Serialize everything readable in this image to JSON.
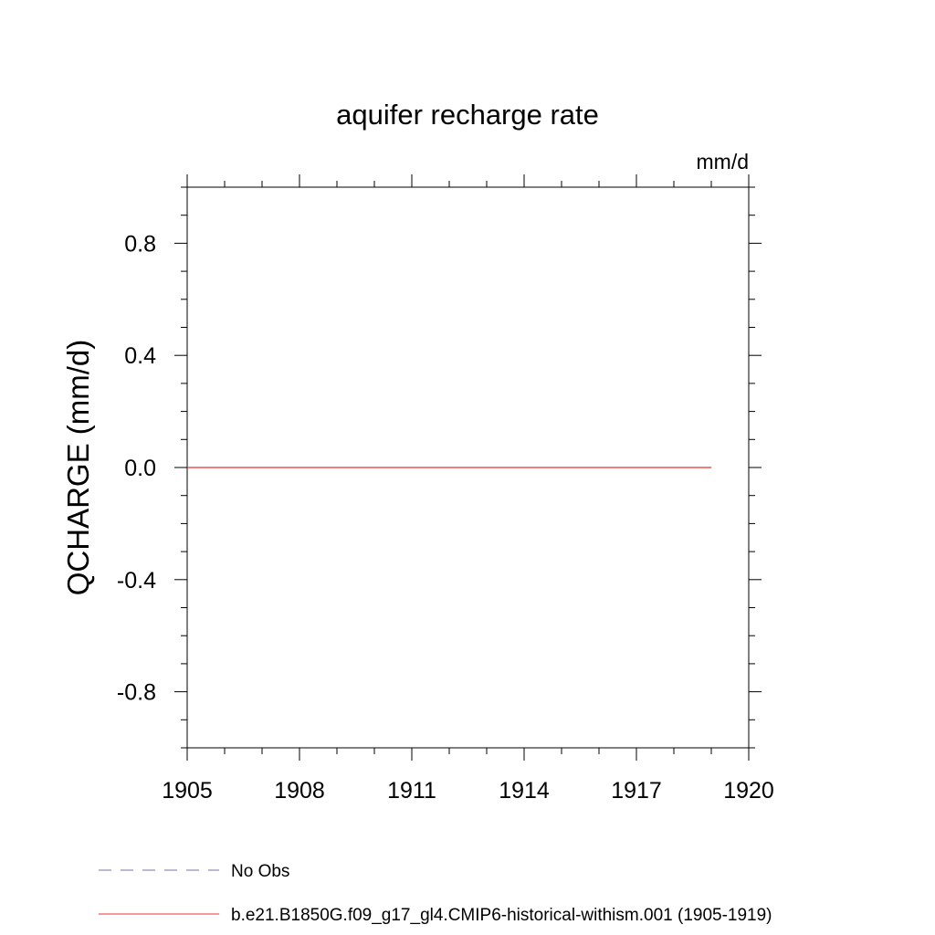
{
  "chart_data": {
    "type": "line",
    "title": "aquifer recharge rate",
    "units_label": "mm/d",
    "ylabel": "QCHARGE  (mm/d)",
    "xlabel": "",
    "xlim": [
      1905,
      1920
    ],
    "ylim": [
      -1.0,
      1.0
    ],
    "x_ticks": [
      1905,
      1908,
      1911,
      1914,
      1917,
      1920
    ],
    "x_tick_labels": [
      "1905",
      "1908",
      "1911",
      "1914",
      "1917",
      "1920"
    ],
    "x_minor_step": 1,
    "y_ticks": [
      -0.8,
      -0.4,
      0.0,
      0.4,
      0.8
    ],
    "y_tick_labels": [
      "-0.8",
      "-0.4",
      "0.0",
      "0.4",
      "0.8"
    ],
    "y_minor_step": 0.1,
    "grid": false,
    "legend_position": "bottom",
    "series": [
      {
        "name": "b.e21.B1850G.f09_g17_gl4.CMIP6-historical-withism.001 (1905-1919)",
        "color": "#e8332f",
        "dash": "solid",
        "x": [
          1905,
          1906,
          1907,
          1908,
          1909,
          1910,
          1911,
          1912,
          1913,
          1914,
          1915,
          1916,
          1917,
          1918,
          1919
        ],
        "y": [
          0,
          0,
          0,
          0,
          0,
          0,
          0,
          0,
          0,
          0,
          0,
          0,
          0,
          0,
          0
        ]
      }
    ],
    "legend": [
      {
        "label": "No Obs",
        "color": "#7b6fa8",
        "dash": "dashed"
      },
      {
        "label": "b.e21.B1850G.f09_g17_gl4.CMIP6-historical-withism.001 (1905-1919)",
        "color": "#e8332f",
        "dash": "solid"
      }
    ]
  }
}
